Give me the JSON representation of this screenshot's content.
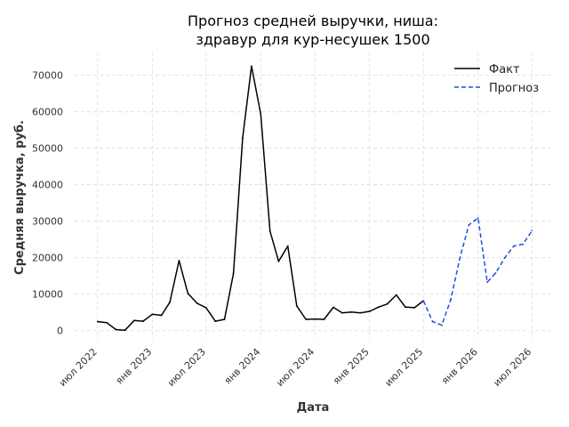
{
  "chart_data": {
    "type": "line",
    "title_line1": "Прогноз средней выручки, ниша:",
    "title_line2": "здравур для кур-несушек 1500",
    "xlabel": "Дата",
    "ylabel": "Средняя выручка, руб.",
    "grid": true,
    "legend_position": "top-right",
    "ylim": [
      -2500,
      76500
    ],
    "yticks": [
      0,
      10000,
      20000,
      30000,
      40000,
      50000,
      60000,
      70000
    ],
    "xlim": [
      "2022-04-15",
      "2026-09-10"
    ],
    "xticks": [
      {
        "date": "2022-07-01",
        "label": "июл 2022"
      },
      {
        "date": "2023-01-01",
        "label": "янв 2023"
      },
      {
        "date": "2023-07-01",
        "label": "июл 2023"
      },
      {
        "date": "2024-01-01",
        "label": "янв 2024"
      },
      {
        "date": "2024-07-01",
        "label": "июл 2024"
      },
      {
        "date": "2025-01-01",
        "label": "янв 2025"
      },
      {
        "date": "2025-07-01",
        "label": "июл 2025"
      },
      {
        "date": "2026-01-01",
        "label": "янв 2026"
      },
      {
        "date": "2026-07-01",
        "label": "июл 2026"
      }
    ],
    "series": [
      {
        "name": "Факт",
        "color": "#000000",
        "style": "solid",
        "points": [
          {
            "x": "2022-07-01",
            "y": 2500
          },
          {
            "x": "2022-08-01",
            "y": 2200
          },
          {
            "x": "2022-09-01",
            "y": 300
          },
          {
            "x": "2022-10-01",
            "y": 100
          },
          {
            "x": "2022-11-01",
            "y": 2800
          },
          {
            "x": "2022-12-01",
            "y": 2600
          },
          {
            "x": "2023-01-01",
            "y": 4500
          },
          {
            "x": "2023-02-01",
            "y": 4200
          },
          {
            "x": "2023-03-01",
            "y": 7800
          },
          {
            "x": "2023-04-01",
            "y": 19200
          },
          {
            "x": "2023-05-01",
            "y": 10200
          },
          {
            "x": "2023-06-01",
            "y": 7500
          },
          {
            "x": "2023-07-01",
            "y": 6300
          },
          {
            "x": "2023-08-01",
            "y": 2600
          },
          {
            "x": "2023-09-01",
            "y": 3100
          },
          {
            "x": "2023-10-01",
            "y": 15700
          },
          {
            "x": "2023-11-01",
            "y": 52800
          },
          {
            "x": "2023-12-01",
            "y": 72500
          },
          {
            "x": "2024-01-01",
            "y": 59300
          },
          {
            "x": "2024-02-01",
            "y": 27300
          },
          {
            "x": "2024-03-01",
            "y": 19000
          },
          {
            "x": "2024-04-01",
            "y": 23200
          },
          {
            "x": "2024-05-01",
            "y": 6800
          },
          {
            "x": "2024-06-01",
            "y": 3100
          },
          {
            "x": "2024-07-01",
            "y": 3200
          },
          {
            "x": "2024-08-01",
            "y": 3100
          },
          {
            "x": "2024-09-01",
            "y": 6400
          },
          {
            "x": "2024-10-01",
            "y": 4900
          },
          {
            "x": "2024-11-01",
            "y": 5100
          },
          {
            "x": "2024-12-01",
            "y": 4900
          },
          {
            "x": "2025-01-01",
            "y": 5300
          },
          {
            "x": "2025-02-01",
            "y": 6500
          },
          {
            "x": "2025-03-01",
            "y": 7300
          },
          {
            "x": "2025-04-01",
            "y": 9800
          },
          {
            "x": "2025-05-01",
            "y": 6500
          },
          {
            "x": "2025-06-01",
            "y": 6300
          },
          {
            "x": "2025-07-01",
            "y": 8200
          }
        ]
      },
      {
        "name": "Прогноз",
        "color": "#1f4fe0",
        "style": "dashed",
        "points": [
          {
            "x": "2025-07-01",
            "y": 8200
          },
          {
            "x": "2025-08-01",
            "y": 2500
          },
          {
            "x": "2025-09-01",
            "y": 1500
          },
          {
            "x": "2025-10-01",
            "y": 8500
          },
          {
            "x": "2025-11-01",
            "y": 20000
          },
          {
            "x": "2025-12-01",
            "y": 29000
          },
          {
            "x": "2026-01-01",
            "y": 30900
          },
          {
            "x": "2026-02-01",
            "y": 13300
          },
          {
            "x": "2026-03-01",
            "y": 15800
          },
          {
            "x": "2026-04-01",
            "y": 20000
          },
          {
            "x": "2026-05-01",
            "y": 23200
          },
          {
            "x": "2026-06-01",
            "y": 23700
          },
          {
            "x": "2026-07-01",
            "y": 27400
          }
        ]
      }
    ]
  }
}
